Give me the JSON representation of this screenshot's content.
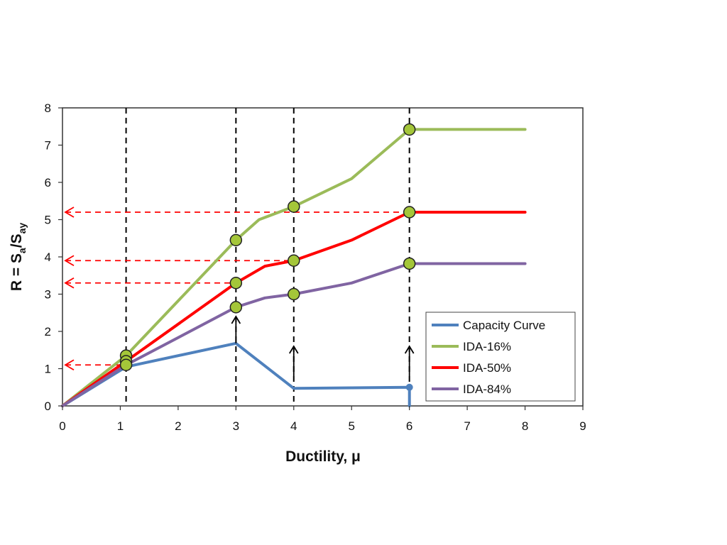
{
  "chart_data": {
    "type": "line",
    "xlabel": "Ductility, μ",
    "ylabel": {
      "main": "R = S",
      "sub1": "a",
      "mid": "/S",
      "sub2": "ay"
    },
    "xlim": [
      0,
      9
    ],
    "ylim": [
      0,
      8
    ],
    "xticks": [
      0,
      1,
      2,
      3,
      4,
      5,
      6,
      7,
      8,
      9
    ],
    "xtick_labels": [
      "0",
      "1",
      "2",
      "3",
      "4",
      "5",
      "6",
      "7",
      "8",
      "9"
    ],
    "yticks": [
      0,
      1,
      2,
      3,
      4,
      5,
      6,
      7,
      8
    ],
    "ytick_labels": [
      "0",
      "1",
      "2",
      "3",
      "4",
      "5",
      "6",
      "7",
      "8"
    ],
    "grid": false,
    "legend_position": "bottom-right",
    "series": [
      {
        "name": "Capacity Curve",
        "color": "#4f81bd",
        "x": [
          0,
          1.1,
          3.0,
          4.0,
          6.0,
          6.0
        ],
        "y": [
          0,
          1.05,
          1.68,
          0.47,
          0.5,
          0.0
        ]
      },
      {
        "name": "IDA-16%",
        "color": "#9bbb59",
        "x": [
          0,
          1.1,
          3.0,
          3.4,
          4.0,
          5.0,
          6.0,
          8.0
        ],
        "y": [
          0,
          1.35,
          4.45,
          5.0,
          5.35,
          6.1,
          7.42,
          7.42
        ]
      },
      {
        "name": "IDA-50%",
        "color": "#ff0000",
        "x": [
          0,
          1.1,
          3.0,
          3.5,
          4.0,
          5.0,
          6.0,
          8.0
        ],
        "y": [
          0,
          1.2,
          3.3,
          3.75,
          3.9,
          4.45,
          5.2,
          5.2
        ]
      },
      {
        "name": "IDA-84%",
        "color": "#8064a2",
        "x": [
          0,
          1.1,
          3.0,
          3.5,
          4.0,
          5.0,
          6.0,
          8.0
        ],
        "y": [
          0,
          1.1,
          2.65,
          2.9,
          3.0,
          3.3,
          3.82,
          3.82
        ]
      }
    ],
    "markers": [
      {
        "x": 1.1,
        "y": 1.35
      },
      {
        "x": 1.1,
        "y": 1.2
      },
      {
        "x": 1.1,
        "y": 1.1
      },
      {
        "x": 3.0,
        "y": 4.45
      },
      {
        "x": 3.0,
        "y": 3.3
      },
      {
        "x": 3.0,
        "y": 2.65
      },
      {
        "x": 4.0,
        "y": 5.35
      },
      {
        "x": 4.0,
        "y": 3.9
      },
      {
        "x": 4.0,
        "y": 3.0
      },
      {
        "x": 6.0,
        "y": 7.42
      },
      {
        "x": 6.0,
        "y": 5.2
      },
      {
        "x": 6.0,
        "y": 3.82
      }
    ],
    "marker_color": "#a4c639",
    "vertical_dashed_lines": [
      1.1,
      3.0,
      4.0,
      6.0
    ],
    "horizontal_red_arrows": [
      {
        "y": 5.2,
        "x_from": 6.0
      },
      {
        "y": 3.9,
        "x_from": 4.0
      },
      {
        "y": 3.3,
        "x_from": 3.0
      },
      {
        "y": 1.1,
        "x_from": 1.1
      }
    ],
    "up_arrows": [
      {
        "x": 3.0,
        "y_from": 1.68,
        "y_to": 2.4
      },
      {
        "x": 4.0,
        "y_from": 0.8,
        "y_to": 1.6
      },
      {
        "x": 6.0,
        "y_from": 0.8,
        "y_to": 1.6
      }
    ]
  }
}
